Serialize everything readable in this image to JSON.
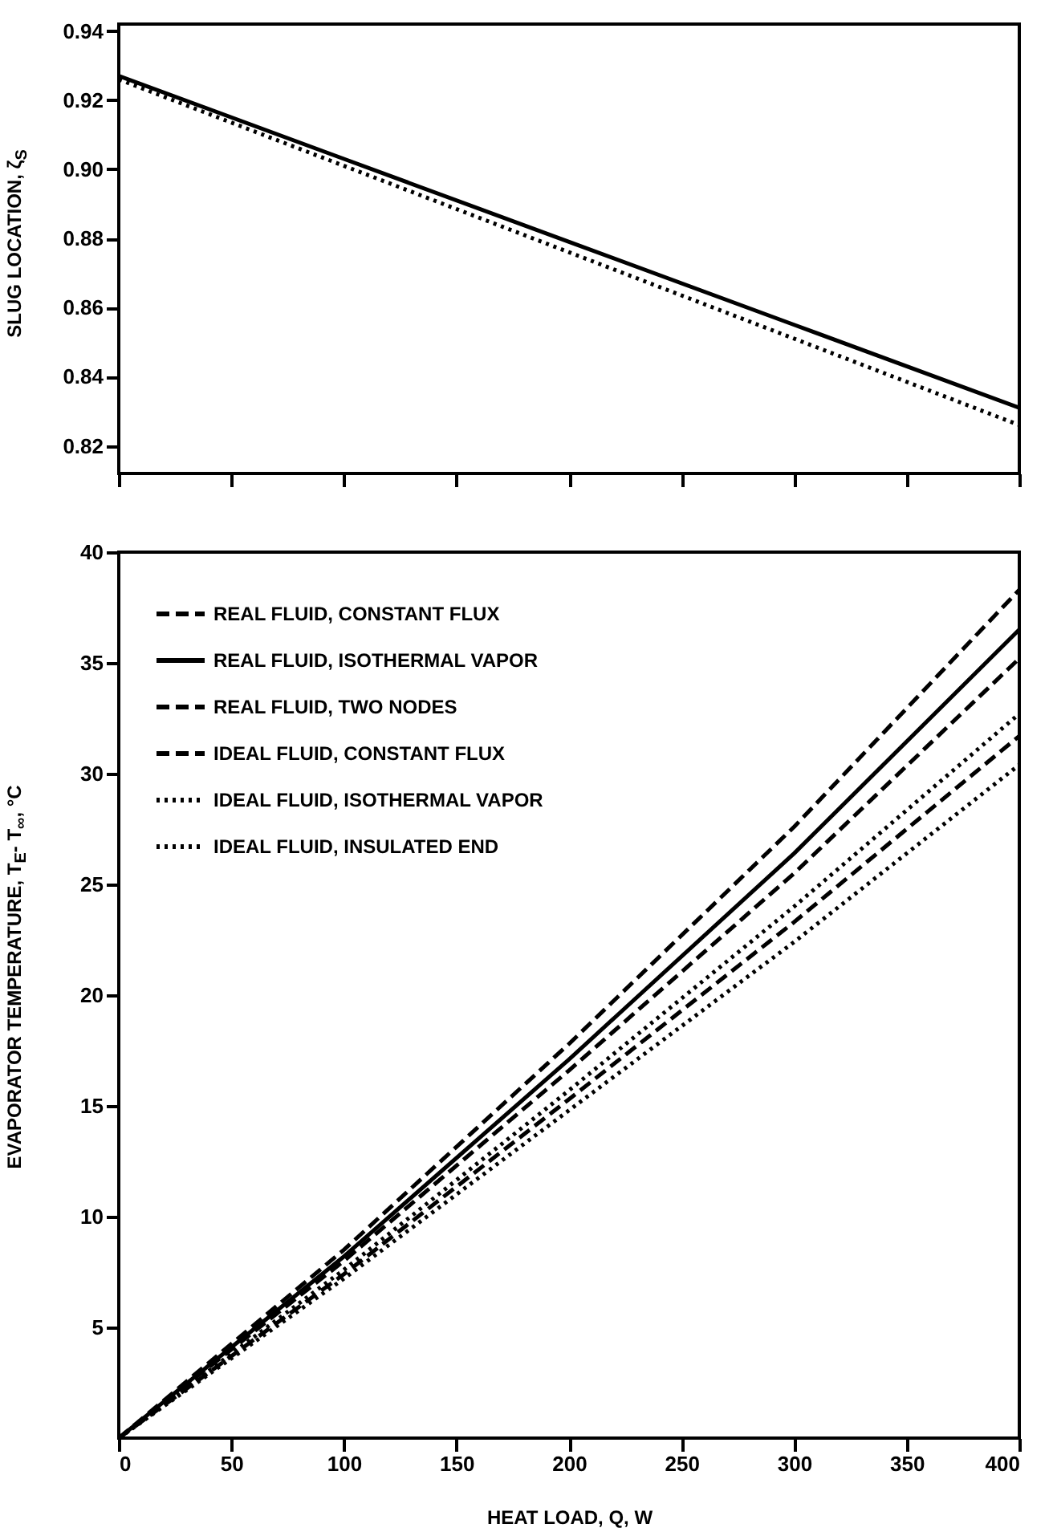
{
  "chart_data": [
    {
      "type": "line",
      "ylabel": "SLUG LOCATION, ζ$_{S}$",
      "xlim": [
        0,
        400
      ],
      "xticks": [
        0,
        50,
        100,
        150,
        200,
        250,
        300,
        350,
        400
      ],
      "ylim": [
        0.812,
        0.942
      ],
      "yticks": [
        0.82,
        0.84,
        0.86,
        0.88,
        {
          "value": 0.9,
          "label": "0.90"
        },
        0.92,
        0.94
      ],
      "tick_labels": "y",
      "grid": false,
      "legend": false,
      "marker": "none",
      "series": [
        {
          "color": "#000000",
          "line_style": "solid",
          "x": [
            0,
            100,
            200,
            300,
            400
          ],
          "values": [
            0.927,
            0.903,
            0.879,
            0.855,
            0.831
          ]
        },
        {
          "color": "#000000",
          "line_style": "dotted",
          "x": [
            0,
            100,
            200,
            300,
            400
          ],
          "values": [
            0.926,
            0.901,
            0.876,
            0.851,
            0.826
          ]
        }
      ]
    },
    {
      "type": "line",
      "xlabel": "HEAT LOAD, Q, W",
      "ylabel": "EVAPORATOR TEMPERATURE, T$_{E}$- T$_{∞}$, °C",
      "xlim": [
        0,
        400
      ],
      "xticks": [
        0,
        50,
        100,
        150,
        200,
        250,
        300,
        350,
        400
      ],
      "ylim": [
        0,
        40
      ],
      "yticks": [
        5,
        10,
        15,
        20,
        25,
        30,
        35,
        40
      ],
      "grid": false,
      "legend": "top left",
      "marker": "none",
      "series": [
        {
          "name": "REAL FLUID, CONSTANT FLUX",
          "color": "#000000",
          "line_style": "dashed",
          "x": [
            0,
            100,
            200,
            300,
            400
          ],
          "values": [
            0,
            8.5,
            17.8,
            27.6,
            38.3
          ]
        },
        {
          "name": "REAL FLUID, ISOTHERMAL VAPOR",
          "color": "#000000",
          "line_style": "solid",
          "x": [
            0,
            100,
            200,
            300,
            400
          ],
          "values": [
            0,
            8.2,
            17.1,
            26.4,
            36.5
          ]
        },
        {
          "name": "REAL FLUID, TWO NODES",
          "color": "#000000",
          "line_style": "dashed",
          "x": [
            0,
            100,
            200,
            300,
            400
          ],
          "values": [
            0,
            8.0,
            16.6,
            25.5,
            35.2
          ]
        },
        {
          "name": "IDEAL FLUID, CONSTANT FLUX",
          "color": "#000000",
          "line_style": "dashed",
          "x": [
            0,
            100,
            200,
            300,
            400
          ],
          "values": [
            0,
            7.4,
            15.3,
            23.3,
            31.7
          ]
        },
        {
          "name": "IDEAL FLUID, ISOTHERMAL VAPOR",
          "color": "#000000",
          "line_style": "dotted",
          "x": [
            0,
            100,
            200,
            300,
            400
          ],
          "values": [
            0,
            7.2,
            14.8,
            22.4,
            30.4
          ]
        },
        {
          "name": "IDEAL FLUID, INSULATED END",
          "color": "#000000",
          "line_style": "dotted",
          "x": [
            0,
            100,
            200,
            300,
            400
          ],
          "values": [
            0,
            7.6,
            15.7,
            24.0,
            32.7
          ]
        }
      ]
    }
  ]
}
